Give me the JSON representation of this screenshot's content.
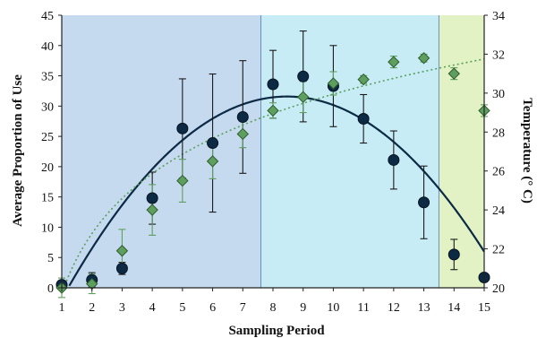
{
  "chart_data": {
    "type": "scatter",
    "xlabel": "Sampling Period",
    "ylabel": "Average Proportion of Use",
    "y2label": "Temperature (° C)",
    "xlim": [
      1,
      15
    ],
    "ylim": [
      0,
      45
    ],
    "y2lim": [
      20,
      34
    ],
    "x_ticks": [
      1,
      2,
      3,
      4,
      5,
      6,
      7,
      8,
      9,
      10,
      11,
      12,
      13,
      14,
      15
    ],
    "y_ticks": [
      0,
      5,
      10,
      15,
      20,
      25,
      30,
      35,
      40,
      45
    ],
    "y2_ticks": [
      20,
      22,
      24,
      26,
      28,
      30,
      32,
      34
    ],
    "regions": [
      {
        "x_start": 1,
        "x_end": 7.6,
        "color": "#c5d9ef"
      },
      {
        "x_start": 7.6,
        "x_end": 13.5,
        "color": "#c8ecf6"
      },
      {
        "x_start": 13.5,
        "x_end": 15,
        "color": "#e2f2c4"
      }
    ],
    "series": [
      {
        "axis": "left",
        "marker": "circle",
        "color": "#0d2a45",
        "x": [
          1,
          2,
          3,
          4,
          5,
          6,
          7,
          8,
          9,
          10,
          11,
          12,
          13,
          14,
          15
        ],
        "y": [
          0.5,
          1.3,
          3.2,
          14.8,
          26.3,
          23.9,
          28.2,
          33.6,
          34.9,
          33.3,
          27.9,
          21.1,
          14.1,
          5.5,
          1.7
        ],
        "err": [
          0,
          1.2,
          1,
          4.3,
          8.2,
          11.4,
          9.3,
          5.6,
          7.5,
          6.7,
          4,
          4.8,
          6,
          2.5,
          0
        ]
      },
      {
        "axis": "right",
        "marker": "diamond",
        "color": "#5e9e5e",
        "x": [
          1,
          2,
          3,
          4,
          5,
          6,
          7,
          8,
          9,
          10,
          11,
          12,
          13,
          14,
          15
        ],
        "y": [
          20,
          20.2,
          21.9,
          24,
          25.5,
          26.5,
          27.9,
          29.1,
          29.8,
          30.5,
          30.7,
          31.6,
          31.8,
          31,
          29.1
        ],
        "err": [
          0.5,
          0.5,
          1.1,
          1.3,
          1.1,
          0.9,
          0.7,
          0.4,
          0.8,
          0.6,
          0.2,
          0.3,
          0.2,
          0.3,
          0.3
        ]
      }
    ],
    "fits": [
      {
        "axis": "left",
        "style": "solid",
        "color": "#0d2a45",
        "coef": [
          -11.43,
          10.16,
          -0.6
        ]
      },
      {
        "axis": "right",
        "style": "dotted",
        "color": "#5aa05a",
        "log_coef": [
          19.7,
          4.45
        ]
      }
    ],
    "grid": false,
    "legend": "none"
  }
}
